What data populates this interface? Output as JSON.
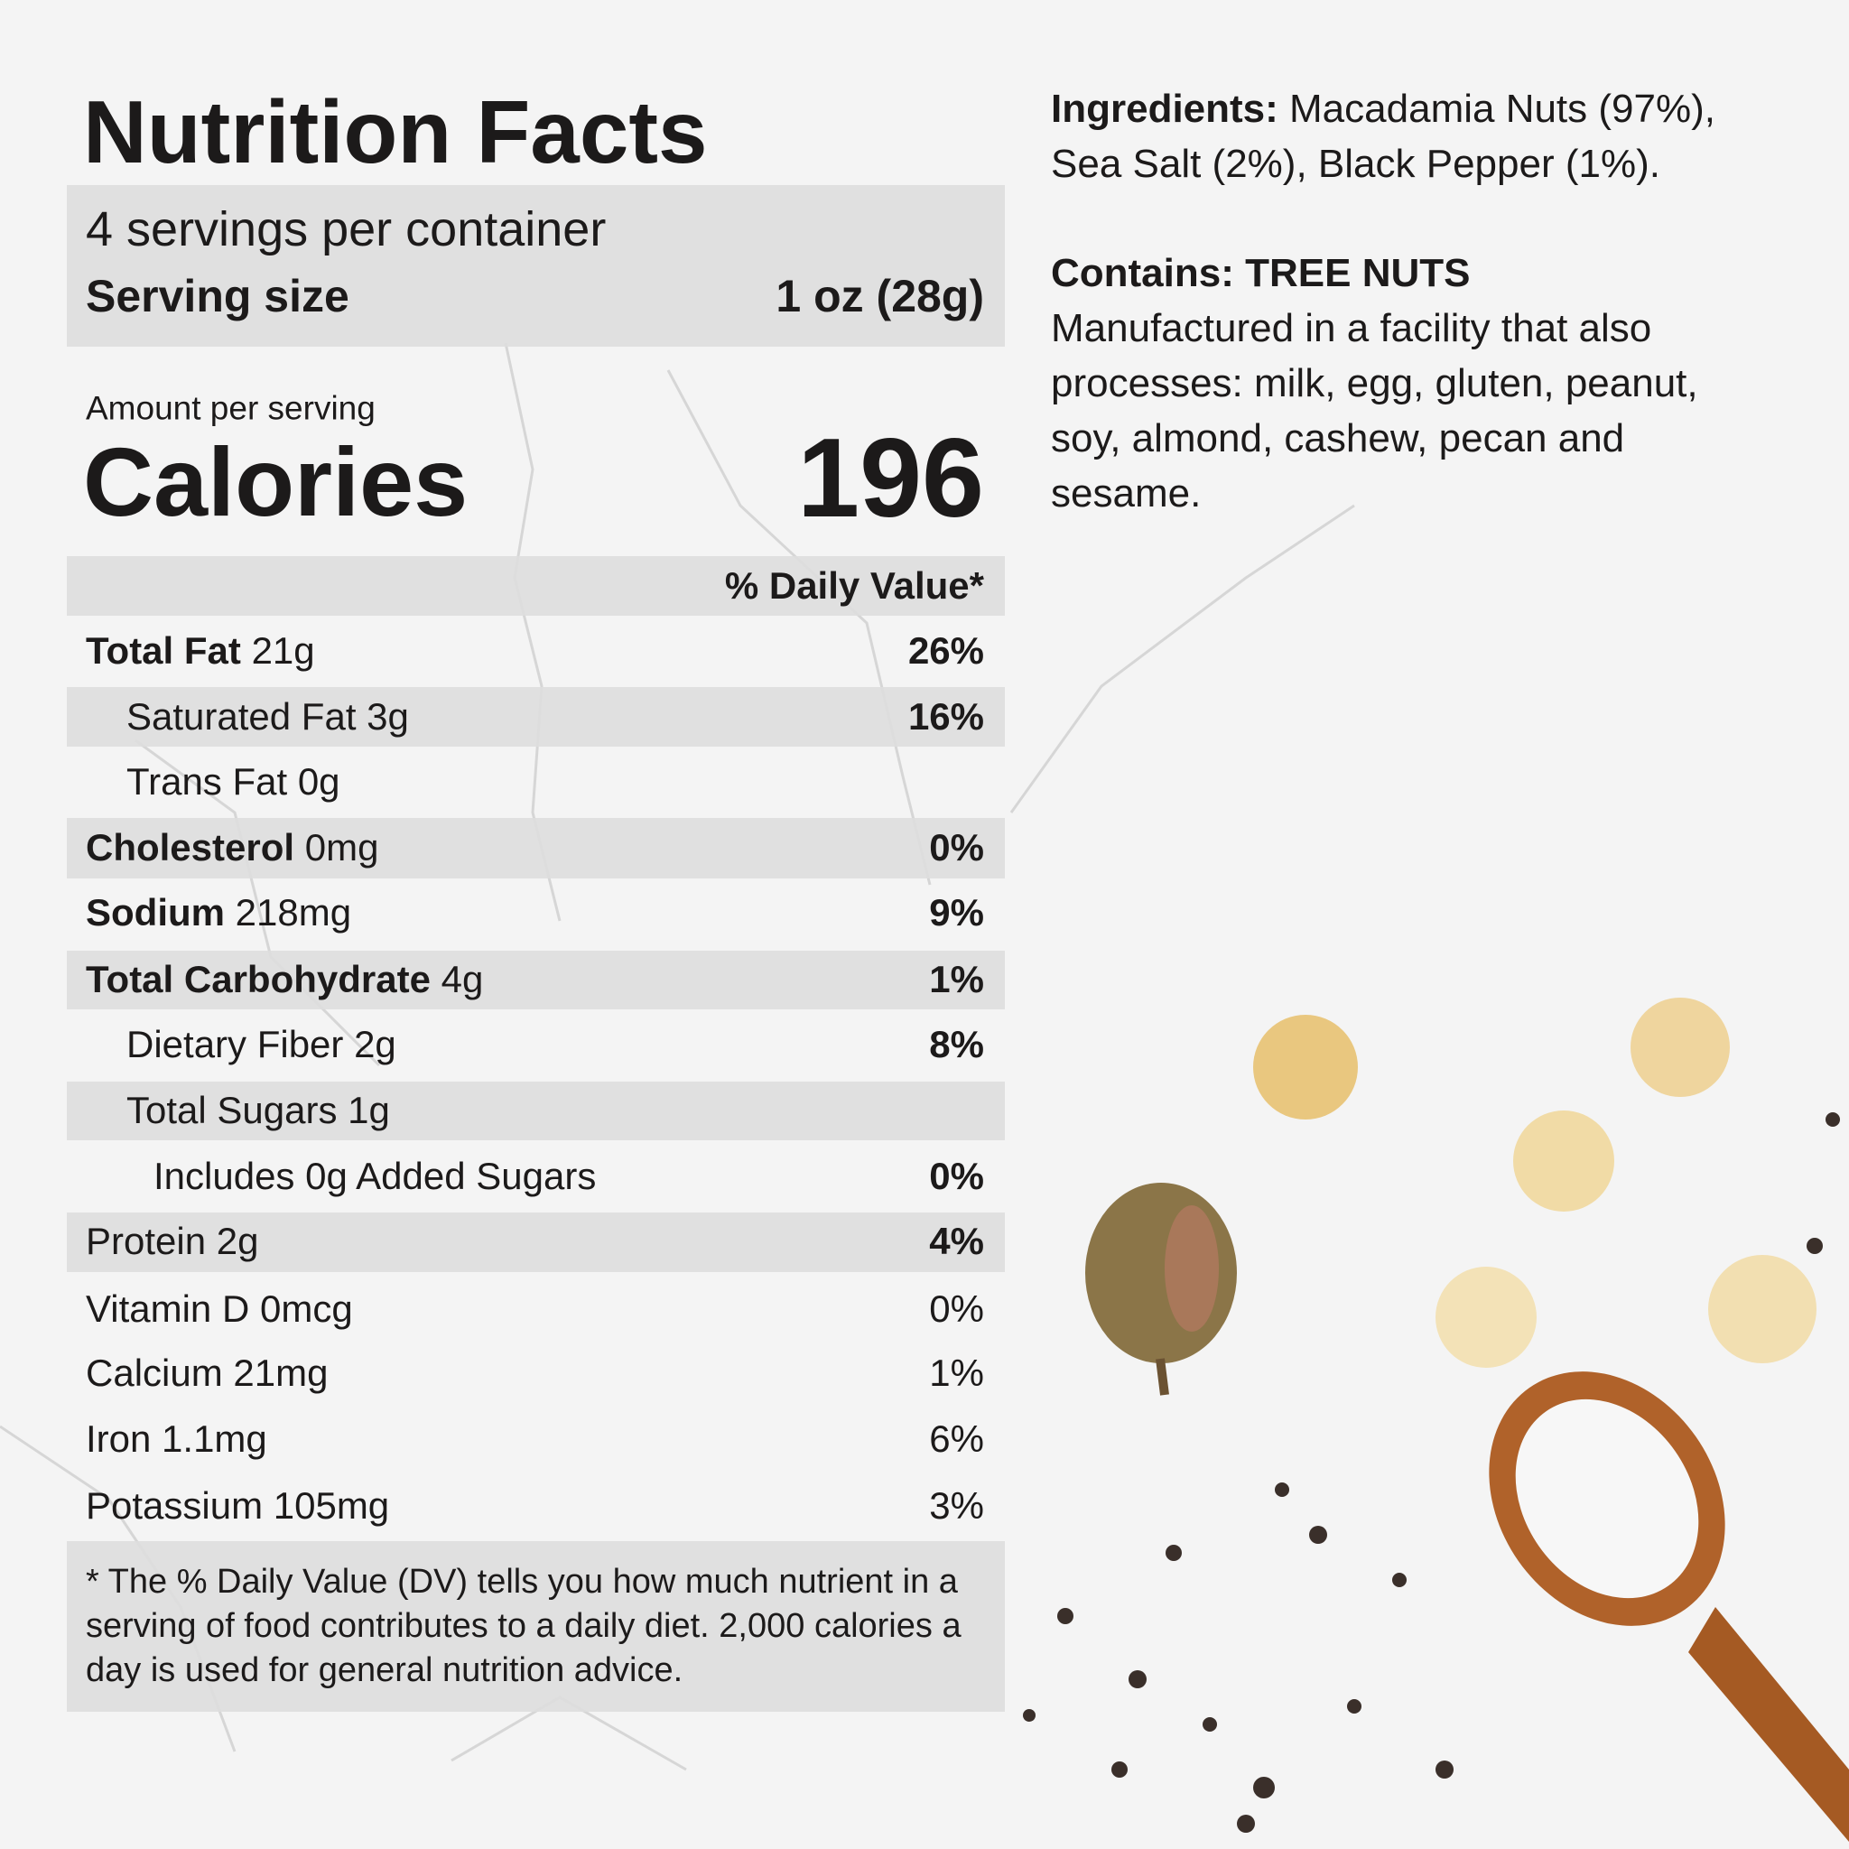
{
  "label": {
    "title": "Nutrition Facts",
    "servings": "4 servings per container",
    "serving_size": {
      "label": "Serving size",
      "value": "1 oz (28g)"
    },
    "amount_per_serving": "Amount per serving",
    "calories": {
      "label": "Calories",
      "value": 196
    },
    "dv_header": "% Daily Value*",
    "rows": [
      {
        "name": "Total Fat",
        "amount": "21g",
        "dv": "26%"
      },
      {
        "name": "Saturated Fat",
        "amount": "3g",
        "dv": "16%"
      },
      {
        "name": "Trans Fat",
        "amount": "0g"
      },
      {
        "name": "Cholesterol",
        "amount": "0mg",
        "dv": "0%"
      },
      {
        "name": "Sodium",
        "amount": "218mg",
        "dv": "9%"
      },
      {
        "name": "Total Carbohydrate",
        "amount": "4g",
        "dv": "1%"
      },
      {
        "name": "Dietary Fiber",
        "amount": "2g",
        "dv": "8%"
      },
      {
        "name": "Total Sugars",
        "amount": "1g"
      },
      {
        "name": "Includes 0g Added Sugars",
        "dv": "0%"
      },
      {
        "name": "Protein",
        "amount": "2g",
        "dv": "4%"
      },
      {
        "name": "Vitamin D",
        "amount": "0mcg",
        "dv": "0%"
      },
      {
        "name": "Calcium",
        "amount": "21mg",
        "dv": "1%"
      },
      {
        "name": "Iron",
        "amount": "1.1mg",
        "dv": "6%"
      },
      {
        "name": "Potassium",
        "amount": "105mg",
        "dv": "3%"
      }
    ],
    "footnote": "* The % Daily Value (DV) tells you how much nutrient in a serving of food contributes to a daily diet. 2,000 calories a day is used for general nutrition advice."
  },
  "ingredients": {
    "label": "Ingredients:",
    "text": "Macadamia Nuts (97%), Sea Salt (2%), Black Pepper (1%)."
  },
  "allergens": {
    "label": "Contains:",
    "text": "TREE NUTS",
    "note": "Manufactured in a facility that also processes: milk, egg, gluten, peanut, soy, almond, cashew, pecan and sesame."
  }
}
